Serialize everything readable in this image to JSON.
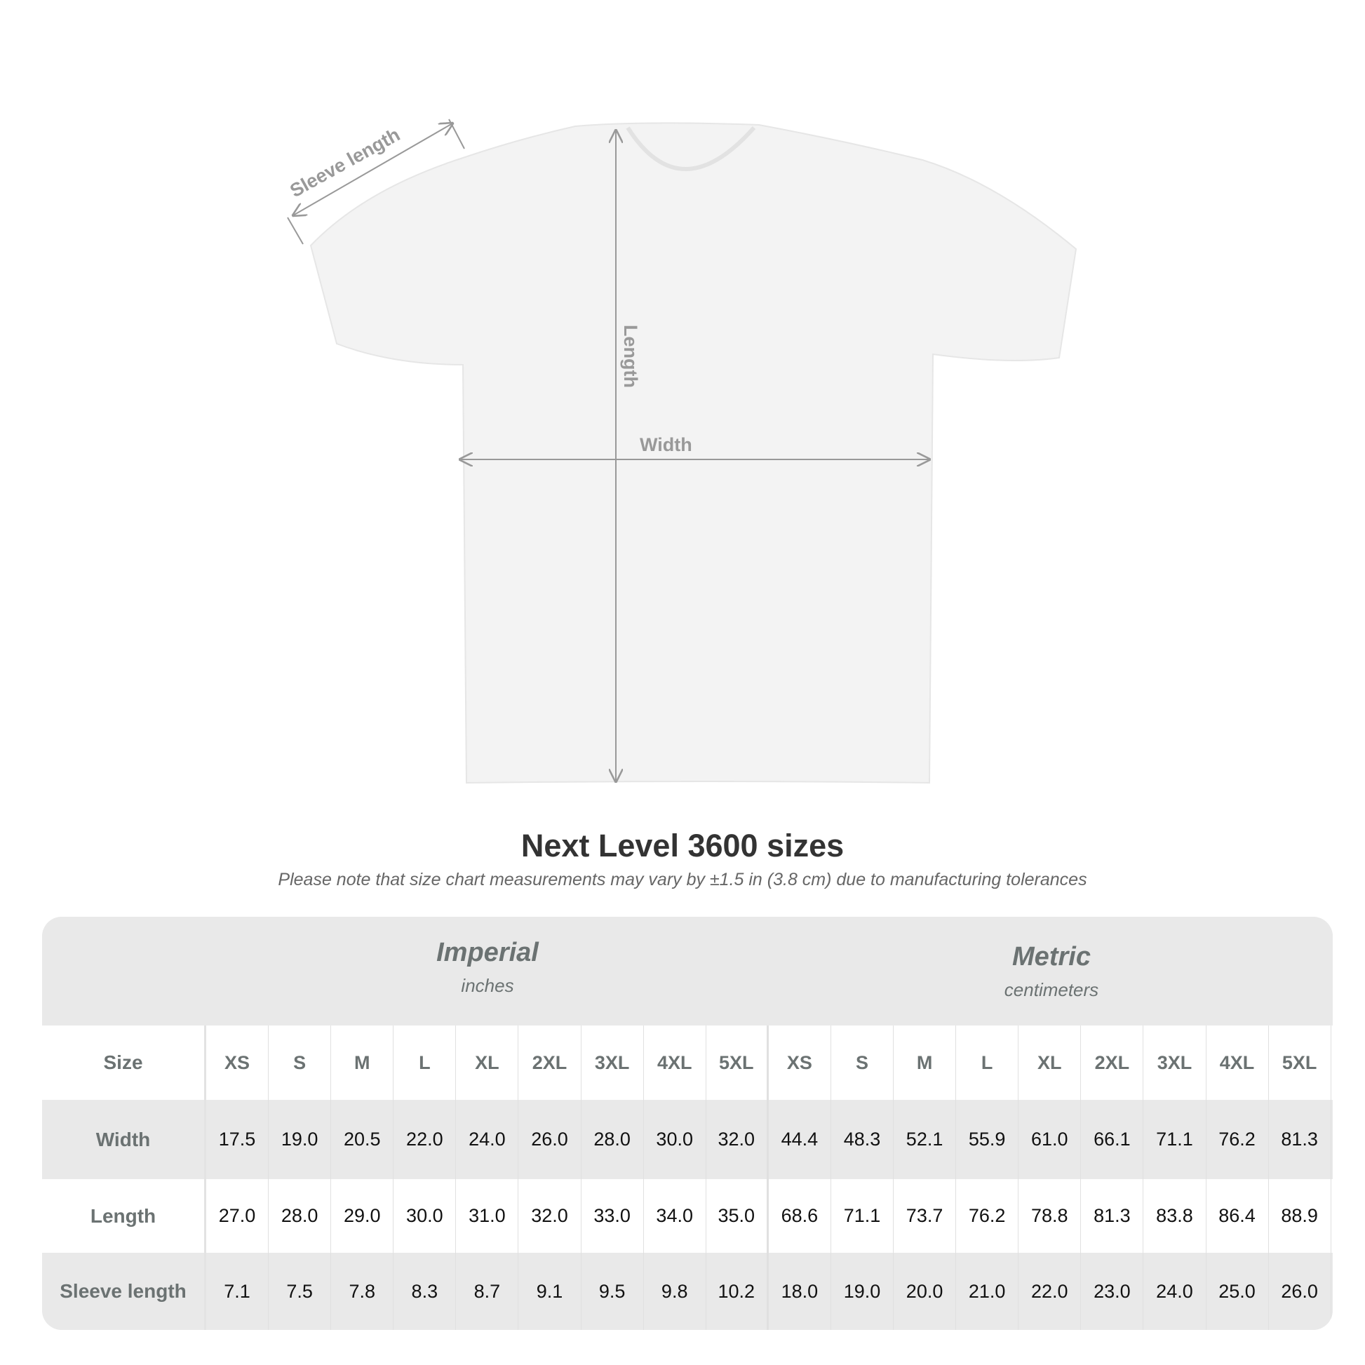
{
  "diagram": {
    "labels": {
      "sleeve": "Sleeve length",
      "length": "Length",
      "width": "Width"
    },
    "colors": {
      "shirt": "#f3f3f3",
      "measure": "#999999"
    }
  },
  "title": "Next Level 3600 sizes",
  "subtitle": "Please note that size chart measurements may vary by ±1.5 in (3.8 cm) due to manufacturing tolerances",
  "table": {
    "imperial": {
      "name": "Imperial",
      "unit": "inches"
    },
    "metric": {
      "name": "Metric",
      "unit": "centimeters"
    },
    "size_label": "Size",
    "sizes": [
      "XS",
      "S",
      "M",
      "L",
      "XL",
      "2XL",
      "3XL",
      "4XL",
      "5XL"
    ],
    "rows": [
      {
        "label": "Width",
        "imperial": [
          "17.5",
          "19.0",
          "20.5",
          "22.0",
          "24.0",
          "26.0",
          "28.0",
          "30.0",
          "32.0"
        ],
        "metric": [
          "44.4",
          "48.3",
          "52.1",
          "55.9",
          "61.0",
          "66.1",
          "71.1",
          "76.2",
          "81.3"
        ]
      },
      {
        "label": "Length",
        "imperial": [
          "27.0",
          "28.0",
          "29.0",
          "30.0",
          "31.0",
          "32.0",
          "33.0",
          "34.0",
          "35.0"
        ],
        "metric": [
          "68.6",
          "71.1",
          "73.7",
          "76.2",
          "78.8",
          "81.3",
          "83.8",
          "86.4",
          "88.9"
        ]
      },
      {
        "label": "Sleeve length",
        "imperial": [
          "7.1",
          "7.5",
          "7.8",
          "8.3",
          "8.7",
          "9.1",
          "9.5",
          "9.8",
          "10.2"
        ],
        "metric": [
          "18.0",
          "19.0",
          "20.0",
          "21.0",
          "22.0",
          "23.0",
          "24.0",
          "25.0",
          "26.0"
        ]
      }
    ]
  }
}
